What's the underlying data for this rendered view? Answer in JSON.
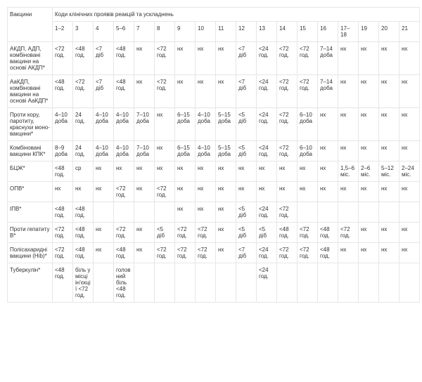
{
  "headers": {
    "vaccine": "Вакцини",
    "codes_group": "Коди клінічних проявів реакцій та ускладнень",
    "cols": [
      "1–2",
      "3",
      "4",
      "5–6",
      "7",
      "8",
      "9",
      "10",
      "11",
      "12",
      "13",
      "14",
      "15",
      "16",
      "17–18",
      "19",
      "20",
      "21"
    ]
  },
  "rows": [
    {
      "vaccine": "АКДП, АДП, комбіновані вакцини на основі АКДП*",
      "cells": [
        "<72 год.",
        "<48 год.",
        "<7 діб",
        "<48 год.",
        "нх",
        "<72 год.",
        "нх",
        "нх",
        "нх",
        "<7 діб",
        "<24 год.",
        "<72 год.",
        "<72 год.",
        "7–14 доба",
        "нх",
        "нх",
        "нх",
        "нх"
      ]
    },
    {
      "vaccine": "АаКДП, комбіновані вакцини на основі АаКДП*",
      "cells": [
        "<48 год.",
        "<72 год.",
        "<7 діб",
        "<48 год.",
        "нх",
        "<72 год.",
        "нх",
        "нх",
        "нх",
        "<7 діб",
        "<24 год.",
        "<72 год.",
        "<72 год.",
        "7–14 доба",
        "нх",
        "нх",
        "нх",
        "нх"
      ]
    },
    {
      "vaccine": "Проти кору, паротиту, краснухи моно-вакцини*",
      "cells": [
        "4–10 доба",
        "24 год.",
        "4–10 доба",
        "4–10 доба",
        "7–10 доба",
        "нх",
        "6–15 доба",
        "4–10 доба",
        "5–15 доба",
        "<5 діб",
        "<24 год.",
        "<72 год.",
        "6–10 доба",
        "нх",
        "нх",
        "нх",
        "нх",
        "нх"
      ]
    },
    {
      "vaccine": "Комбіновані вакцини КПК*",
      "cells": [
        "8–9 доба",
        "24 год.",
        "4–10 доба",
        "4–10 доба",
        "7–10 доба",
        "нх",
        "6–15 доба",
        "4–10 доба",
        "5–15 доба",
        "<5 діб",
        "<24 год.",
        "<72 год.",
        "6–10 доба",
        "нх",
        "нх",
        "нх",
        "нх",
        "нх"
      ]
    },
    {
      "vaccine": "БЦЖ*",
      "cells": [
        "<48 год.",
        "ср",
        "нх",
        "нх",
        "нх",
        "нх",
        "нх",
        "нх",
        "нх",
        "нх",
        "нх",
        "нх",
        "нх",
        "нх",
        "1,5–6 міс.",
        "2–6 міс.",
        "5–12 міс.",
        "2–24 міс."
      ]
    },
    {
      "vaccine": "ОПВ*",
      "cells": [
        "нх",
        "нх",
        "нх",
        "<72 год.",
        "нх",
        "<72 год.",
        "нх",
        "нх",
        "нх",
        "нх",
        "нх",
        "нх",
        "нх",
        "нх",
        "нх",
        "нх",
        "нх",
        "нх"
      ]
    },
    {
      "vaccine": "ІПВ*",
      "cells": [
        "<48 год.",
        "<48 год.",
        "",
        "",
        "",
        "",
        "нх",
        "нх",
        "нх",
        "<5 діб",
        "<24 год.",
        "<72 год.",
        "",
        "",
        "",
        "",
        "",
        ""
      ]
    },
    {
      "vaccine": "Проти гепатиту В*",
      "cells": [
        "<72 год.",
        "<48 год.",
        "нх",
        "<72 год.",
        "нх",
        "<5 діб",
        "<72 год.",
        "<72 год.",
        "нх",
        "<5 діб",
        "<5 діб",
        "<48 год.",
        "<72 год.",
        "<48 год.",
        "<72 год.",
        "нх",
        "нх",
        "нх"
      ]
    },
    {
      "vaccine": "Полісахаридні вакцини (Hib)*",
      "cells": [
        "<72 год.",
        "<48 год.",
        "нх",
        "<48 год.",
        "нх",
        "<72 год.",
        "<72 год.",
        "<72 год.",
        "нх",
        "<7 діб",
        "<24 год.",
        "<72 год.",
        "<72 год.",
        "<48 год.",
        "нх",
        "нх",
        "нх",
        "нх"
      ]
    },
    {
      "vaccine": "Туберкулін*",
      "cells": [
        "<48 год.",
        "біль у місці ін'єкції <72 год.",
        "",
        "головний біль <48 год.",
        "",
        "",
        "",
        "",
        "",
        "",
        "<24 год.",
        "",
        "",
        "",
        "",
        "",
        "",
        ""
      ]
    }
  ],
  "style": {
    "border_color": "#e6e6e6",
    "text_color": "#333333",
    "bg": "#ffffff"
  }
}
